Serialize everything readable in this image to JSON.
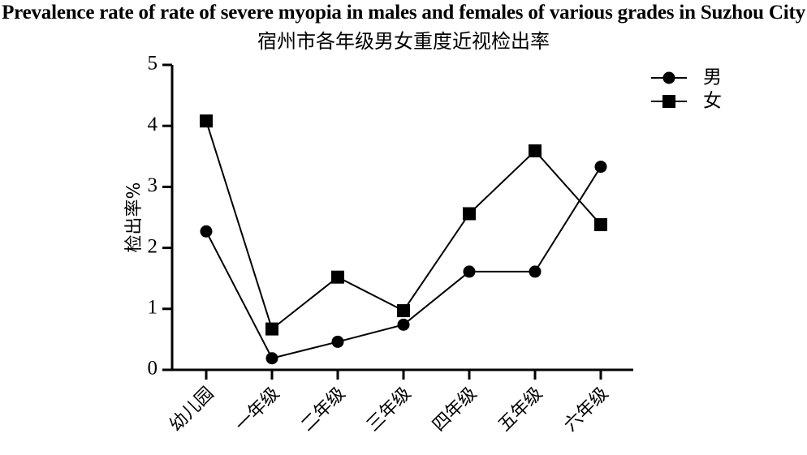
{
  "chart_data": {
    "type": "line",
    "title": "Prevalence rate of  rate of severe myopia in males and females of various grades in Suzhou City",
    "subtitle": "宿州市各年级男女重度近视检出率",
    "xlabel": "",
    "ylabel": "检出率%",
    "ylim": [
      0,
      5
    ],
    "yticks": [
      "0",
      "1",
      "2",
      "3",
      "4",
      "5"
    ],
    "grid": false,
    "legend_position": "top-right",
    "categories": [
      "幼儿园",
      "一年级",
      "二年级",
      "三年级",
      "四年级",
      "五年级",
      "六年级"
    ],
    "series": [
      {
        "name": "男",
        "marker": "circle",
        "values": [
          2.27,
          0.19,
          0.46,
          0.74,
          1.61,
          1.61,
          3.33
        ]
      },
      {
        "name": "女",
        "marker": "square",
        "values": [
          4.08,
          0.67,
          1.52,
          0.97,
          2.56,
          3.59,
          2.38
        ]
      }
    ]
  }
}
